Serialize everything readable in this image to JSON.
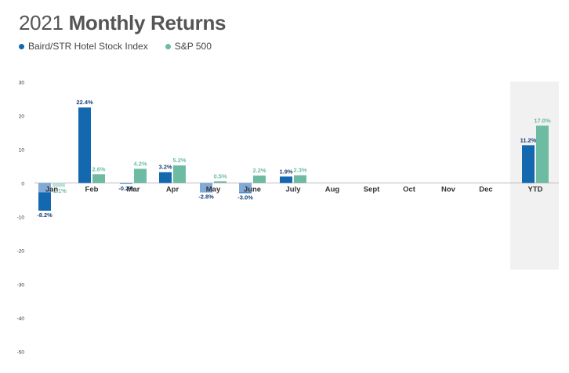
{
  "title": {
    "year": "2021",
    "main": "Monthly Returns"
  },
  "colors": {
    "baird": "#1468b0",
    "sp500": "#6dbba3",
    "baird_light": "#8fb0dc",
    "sp500_light": "#c6e4da",
    "ytd_panel": "#f1f1f1",
    "text": "#333333"
  },
  "chart_data": {
    "type": "bar",
    "title": "2021 Monthly Returns",
    "categories": [
      "Jan",
      "Feb",
      "Mar",
      "Apr",
      "May",
      "June",
      "July",
      "Aug",
      "Sept",
      "Oct",
      "Nov",
      "Dec",
      "YTD"
    ],
    "series": [
      {
        "name": "Baird/STR Hotel Stock Index",
        "values": [
          -8.2,
          22.4,
          -0.2,
          3.2,
          -2.8,
          -3.0,
          1.9,
          null,
          null,
          null,
          null,
          null,
          11.2
        ],
        "labels": [
          "-8.2%",
          "22.4%",
          "-0.2%",
          "3.2%",
          "-2.8%",
          "-3.0%",
          "1.9%",
          null,
          null,
          null,
          null,
          null,
          "11.2%"
        ]
      },
      {
        "name": "S&P 500",
        "values": [
          -1.1,
          2.6,
          4.2,
          5.2,
          0.5,
          2.2,
          2.3,
          null,
          null,
          null,
          null,
          null,
          17.0
        ],
        "labels": [
          "-1.1%",
          "2.6%",
          "4.2%",
          "5.2%",
          "0.5%",
          "2.2%",
          "2.3%",
          null,
          null,
          null,
          null,
          null,
          "17.0%"
        ]
      }
    ],
    "yticks": [
      "30",
      "20",
      "10",
      "0",
      "-10",
      "-20",
      "-30",
      "-40",
      "-50"
    ],
    "ylim": [
      -50,
      30
    ],
    "grid": false,
    "legend": "top-left"
  }
}
